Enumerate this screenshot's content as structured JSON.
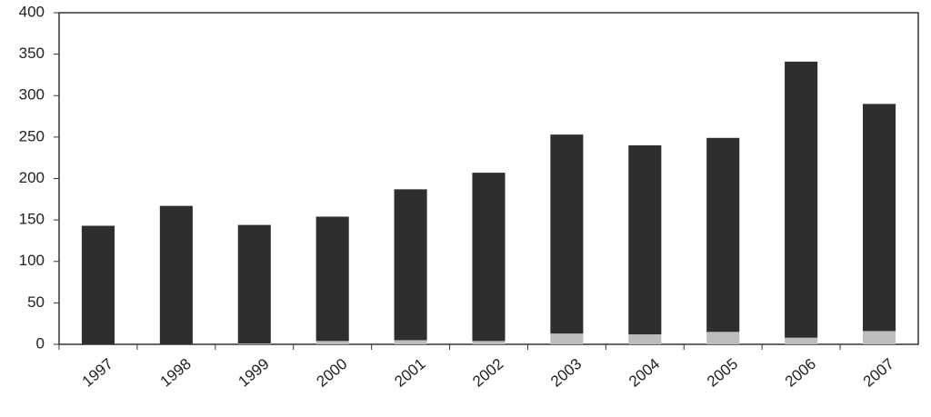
{
  "chart_data": {
    "type": "stacked_bar",
    "categories": [
      "1997",
      "1998",
      "1999",
      "2000",
      "2001",
      "2002",
      "2003",
      "2004",
      "2005",
      "2006",
      "2007"
    ],
    "series": [
      {
        "color": "#bdbdbd",
        "values": [
          0,
          0,
          1,
          4,
          5,
          4,
          13,
          12,
          15,
          8,
          16
        ]
      },
      {
        "color": "#2e2e2e",
        "values": [
          143,
          167,
          143,
          150,
          182,
          203,
          240,
          228,
          234,
          333,
          274
        ]
      }
    ],
    "ylim": [
      0,
      400
    ],
    "yticks": [
      0,
      50,
      100,
      150,
      200,
      250,
      300,
      350,
      400
    ],
    "grid": false
  }
}
